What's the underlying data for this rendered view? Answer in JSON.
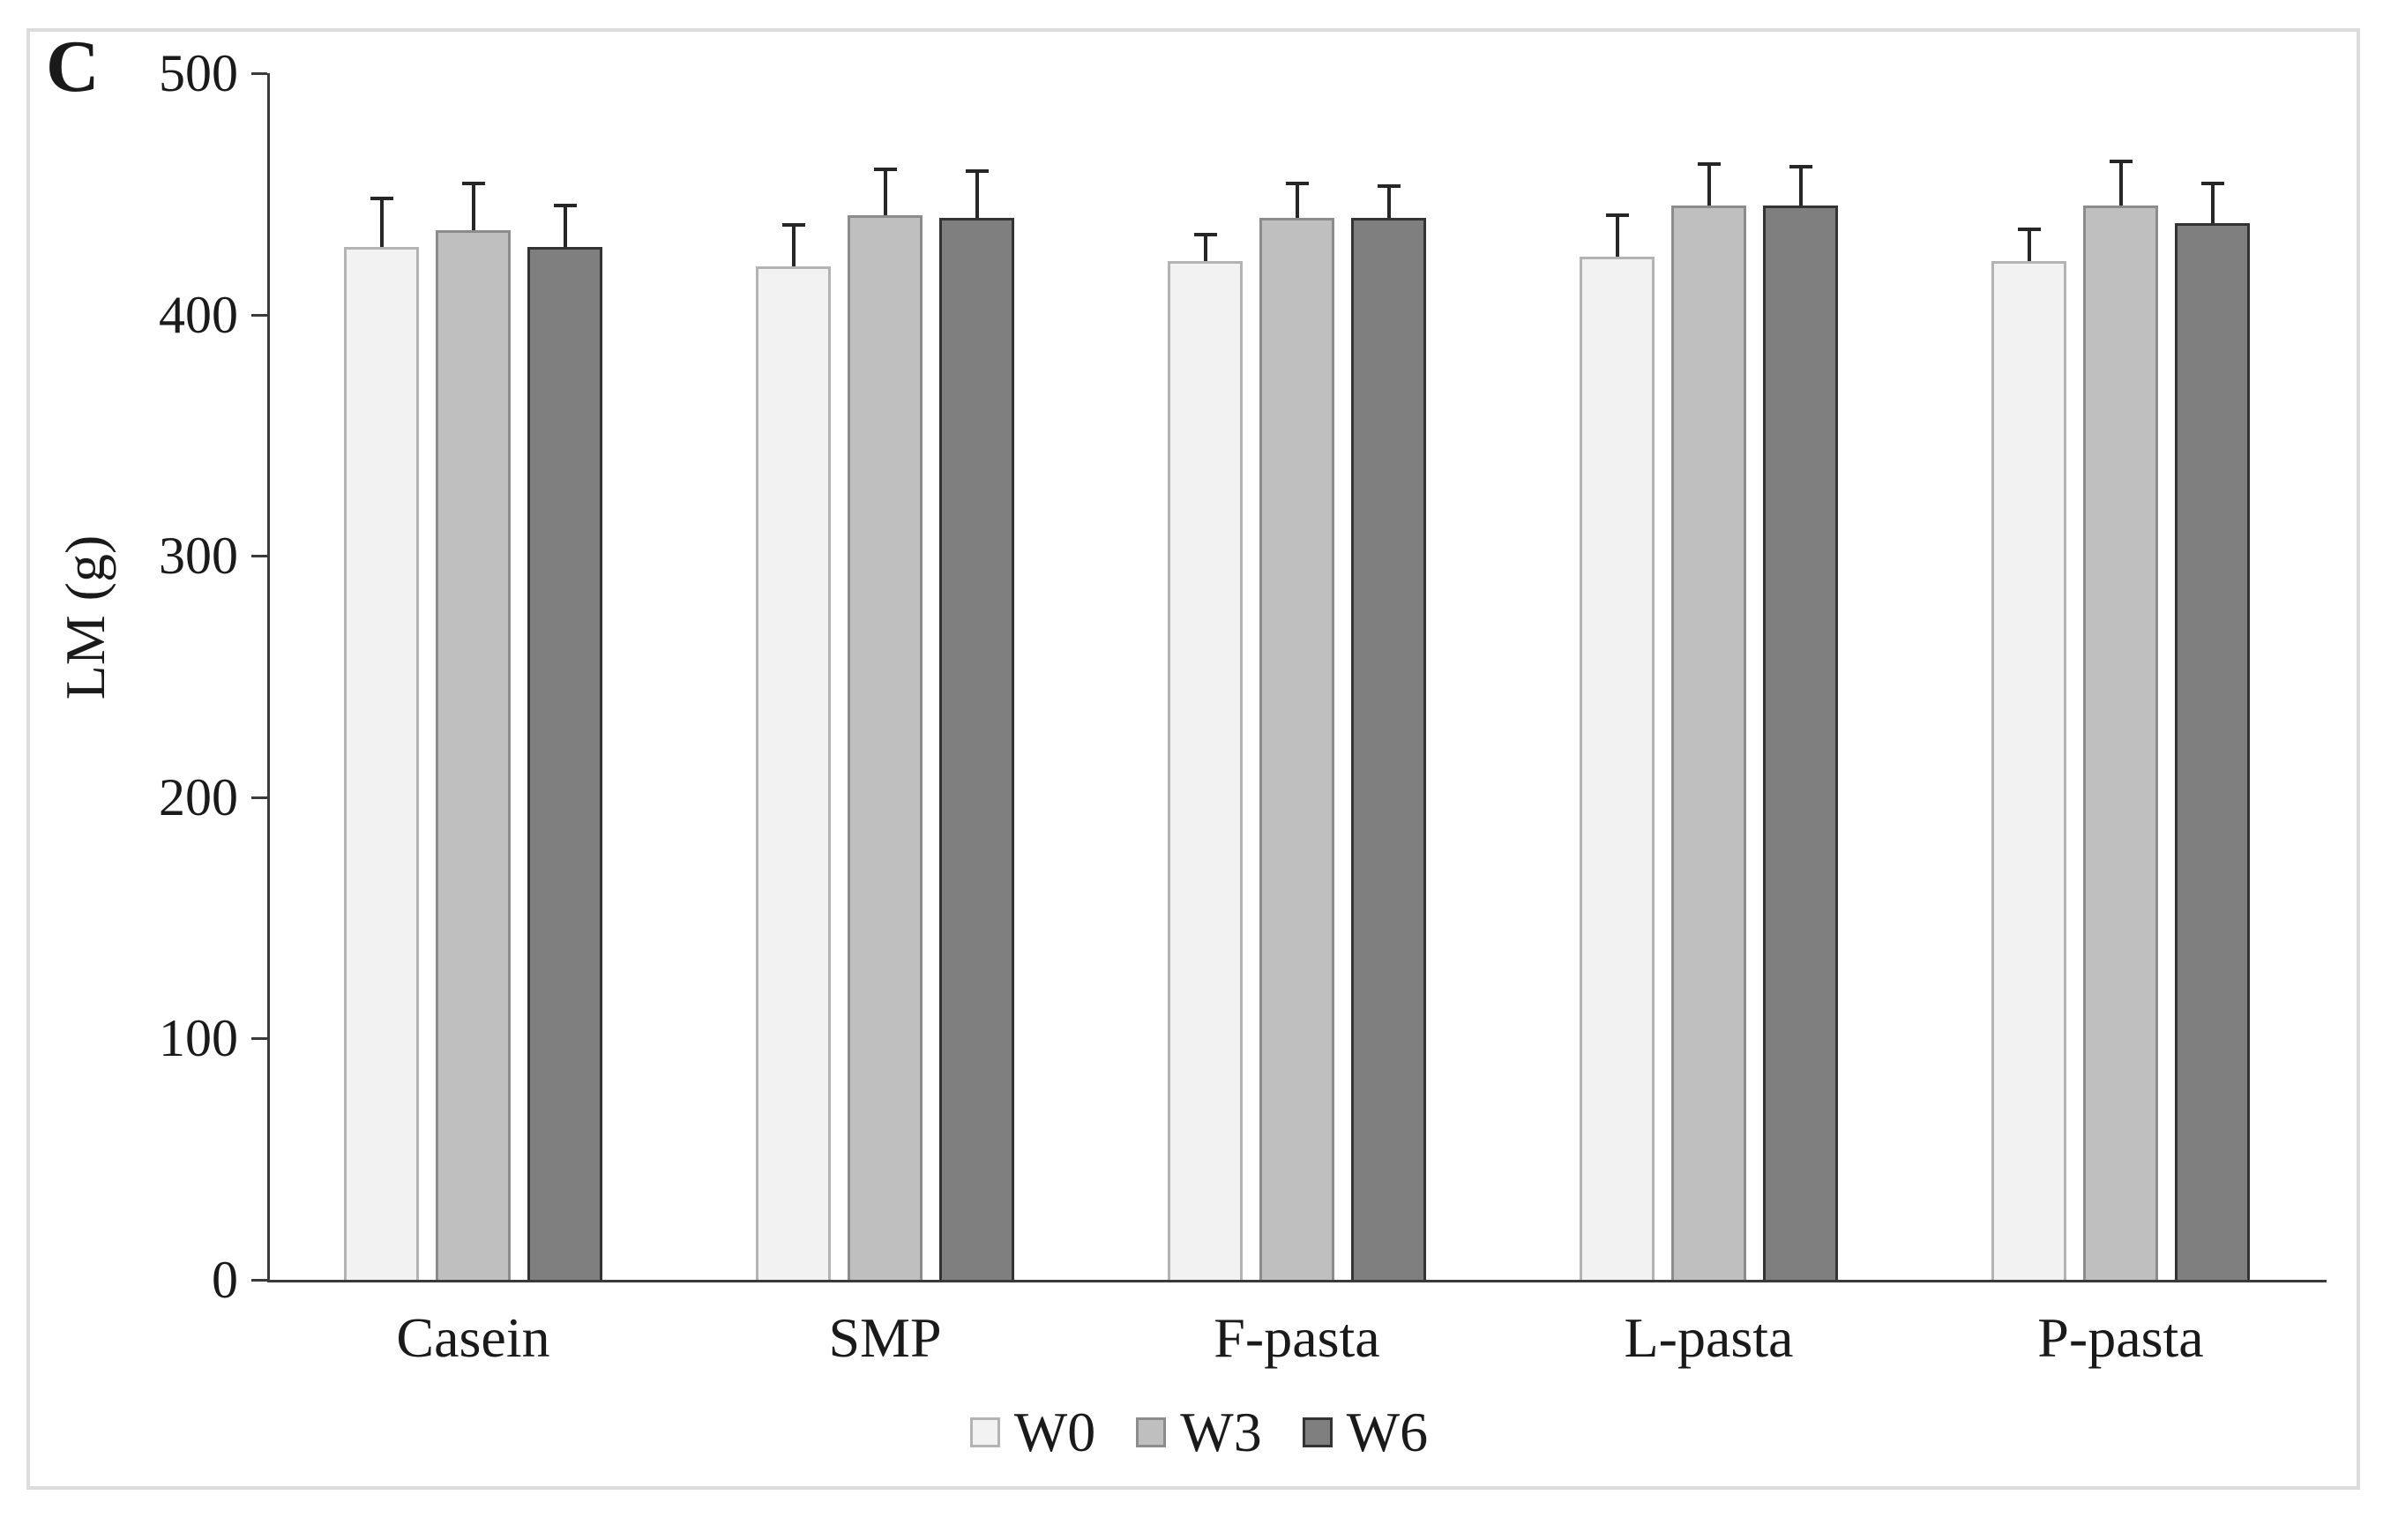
{
  "chart_data": {
    "type": "bar",
    "panel_label": "C",
    "title": "",
    "xlabel": "",
    "ylabel": "LM (g)",
    "ylim": [
      0,
      500
    ],
    "ytick_step": 100,
    "ytick_labels": [
      "0",
      "100",
      "200",
      "300",
      "400",
      "500"
    ],
    "grid": false,
    "legend_position": "bottom",
    "error_bars": "upper-only",
    "categories": [
      "Casein",
      "SMP",
      "F-pasta",
      "L-pasta",
      "P-pasta"
    ],
    "series": [
      {
        "name": "W0",
        "fill": "#f2f2f2",
        "border": "#b3b3b3",
        "values": [
          428,
          420,
          422,
          424,
          422
        ],
        "errors": [
          21,
          18,
          12,
          18,
          14
        ]
      },
      {
        "name": "W3",
        "fill": "#bfbfbf",
        "border": "#8c8c8c",
        "values": [
          435,
          441,
          440,
          445,
          445
        ],
        "errors": [
          20,
          20,
          15,
          18,
          19
        ]
      },
      {
        "name": "W6",
        "fill": "#7f7f7f",
        "border": "#333333",
        "values": [
          428,
          440,
          440,
          445,
          438
        ],
        "errors": [
          18,
          20,
          14,
          17,
          17
        ]
      }
    ]
  }
}
